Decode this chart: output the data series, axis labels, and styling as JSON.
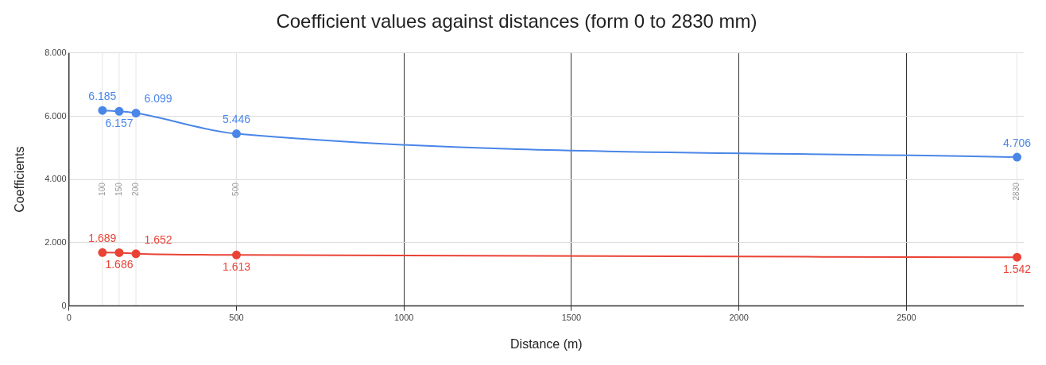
{
  "chart_data": {
    "type": "line",
    "title": "Coefficient values against distances (form 0 to 2830 mm)",
    "xlabel": "Distance (m)",
    "ylabel": "Coefficients",
    "x": [
      100,
      150,
      200,
      500,
      2830
    ],
    "series": [
      {
        "color": "#4a86e8",
        "values": [
          6185,
          6157,
          6099,
          5446,
          4706
        ],
        "value_labels": [
          "6.185",
          "6.157",
          "6.099",
          "5.446",
          "4.706"
        ]
      },
      {
        "color": "#ea4335",
        "values": [
          1689,
          1686,
          1652,
          1613,
          1542
        ],
        "value_labels": [
          "1.689",
          "1.686",
          "1.652",
          "1.613",
          "1.542"
        ]
      }
    ],
    "xlim": [
      0,
      2850
    ],
    "xticks": [
      0,
      500,
      1000,
      1500,
      2000,
      2500
    ],
    "ylim": [
      0,
      8000
    ],
    "yticks": [
      0,
      {
        "value": 2000,
        "label": "2.000"
      },
      {
        "value": 4000,
        "label": "4.000"
      },
      {
        "value": 6000,
        "label": "6.000"
      },
      {
        "value": 8000,
        "label": "8.000"
      }
    ],
    "ref_lines": [
      {
        "axis": "x",
        "value": 100,
        "label": "100",
        "color": "#e6e6e6"
      },
      {
        "axis": "x",
        "value": 150,
        "label": "150",
        "color": "#e6e6e6"
      },
      {
        "axis": "x",
        "value": 200,
        "label": "200",
        "color": "#e6e6e6"
      },
      {
        "axis": "x",
        "value": 500,
        "label": "500",
        "color": "#e6e6e6"
      },
      {
        "axis": "x",
        "value": 2830,
        "label": "2830",
        "color": "#e6e6e6"
      }
    ],
    "grid": true,
    "legend": false,
    "marker": "circle",
    "line_style": "solid"
  }
}
